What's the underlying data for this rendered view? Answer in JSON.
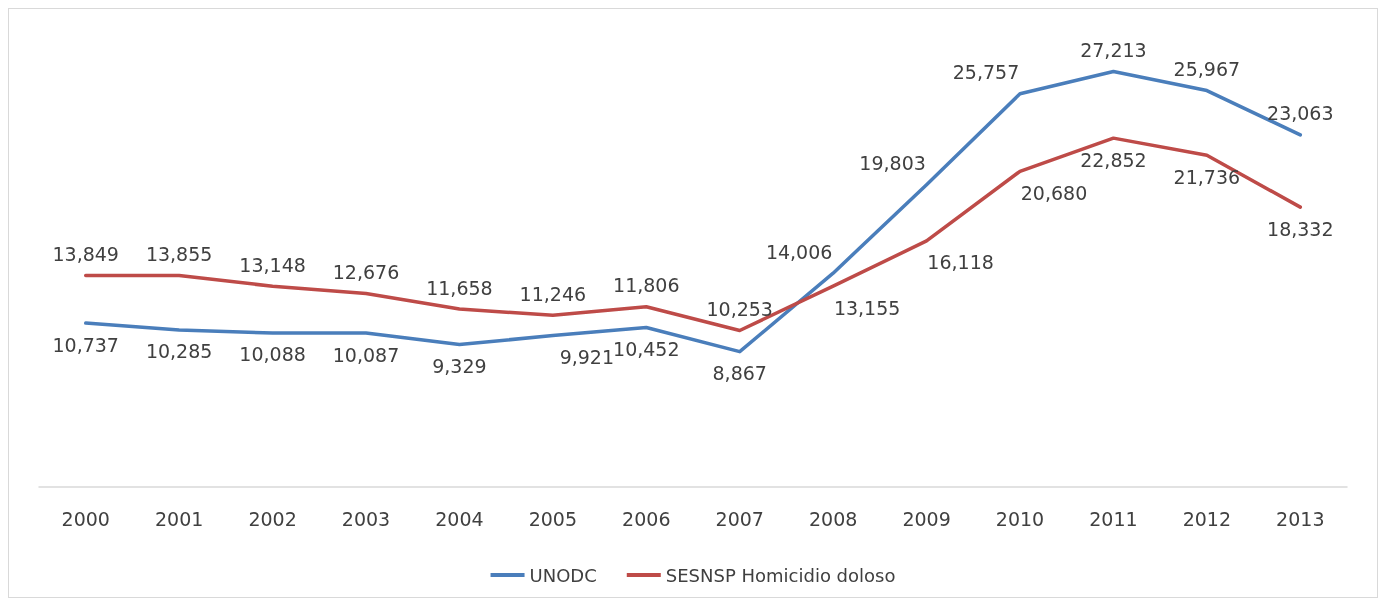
{
  "chart_data": {
    "type": "line",
    "categories": [
      "2000",
      "2001",
      "2002",
      "2003",
      "2004",
      "2005",
      "2006",
      "2007",
      "2008",
      "2009",
      "2010",
      "2011",
      "2012",
      "2013"
    ],
    "series": [
      {
        "name": "UNODC",
        "color": "#4a7ebb",
        "values": [
          10737,
          10285,
          10088,
          10087,
          9329,
          9921,
          10452,
          8867,
          14006,
          19803,
          25757,
          27213,
          25967,
          23063
        ],
        "value_labels": [
          "10,737",
          "10,285",
          "10,088",
          "10,087",
          "9,329",
          "9,921",
          "10,452",
          "8,867",
          "14,006",
          "19,803",
          "25,757",
          "27,213",
          "25,967",
          "23,063"
        ]
      },
      {
        "name": "SESNSP Homicidio doloso",
        "color": "#be4b48",
        "values": [
          13849,
          13855,
          13148,
          12676,
          11658,
          11246,
          11806,
          10253,
          13155,
          16118,
          20680,
          22852,
          21736,
          18332
        ],
        "value_labels": [
          "13,849",
          "13,855",
          "13,148",
          "12,676",
          "11,658",
          "11,246",
          "11,806",
          "10,253",
          "13,155",
          "16,118",
          "20,680",
          "22,852",
          "21,736",
          "18,332"
        ]
      }
    ],
    "tick_labels": "x",
    "grid": false,
    "legend": "bottom",
    "marker": "none",
    "line_style": "solid"
  }
}
